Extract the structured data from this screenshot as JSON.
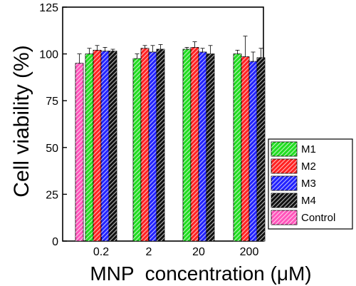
{
  "chart_data": {
    "type": "bar",
    "title": "",
    "xlabel": "MNP  concentration (μM)",
    "ylabel": "Cell viability (%)",
    "ylim": [
      0,
      125
    ],
    "yticks": [
      "0",
      "25",
      "50",
      "75",
      "100",
      "125"
    ],
    "categories": [
      "0.2",
      "2",
      "20",
      "200"
    ],
    "series": [
      {
        "name": "M1",
        "values": [
          100,
          97.5,
          102.5,
          100
        ],
        "errors": [
          3,
          2.5,
          1,
          2
        ],
        "color": "#22dd22"
      },
      {
        "name": "M2",
        "values": [
          102,
          103,
          103.5,
          98.5
        ],
        "errors": [
          2.5,
          1.5,
          3,
          11
        ],
        "color": "#ff2222"
      },
      {
        "name": "M3",
        "values": [
          101.5,
          101,
          101,
          96
        ],
        "errors": [
          2,
          3.5,
          2,
          5
        ],
        "color": "#2222ff"
      },
      {
        "name": "M4",
        "values": [
          101.5,
          102.5,
          100,
          98
        ],
        "errors": [
          1,
          2.5,
          4.5,
          5
        ],
        "color": "#111111"
      }
    ],
    "control": {
      "name": "Control",
      "value": 95,
      "error": 5,
      "color": "#ff55bb"
    },
    "legend": "right"
  }
}
